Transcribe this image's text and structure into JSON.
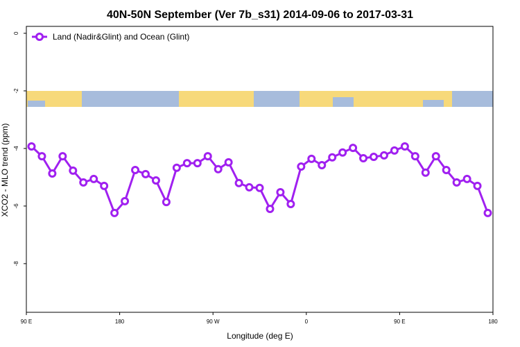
{
  "chart_data": {
    "type": "line",
    "title": "40N-50N September (Ver 7b_s31)   2014-09-06 to 2017-03-31",
    "x_label": "Longitude (deg E)",
    "y_label": "XCO2 - MLO trend (ppm)",
    "x": [
      95,
      105,
      115,
      125,
      135,
      145,
      155,
      165,
      175,
      185,
      195,
      205,
      215,
      225,
      235,
      245,
      255,
      265,
      275,
      285,
      295,
      305,
      315,
      325,
      335,
      345,
      355,
      365,
      375,
      385,
      395,
      405,
      415,
      425,
      435,
      445,
      455,
      465,
      475,
      485,
      495,
      505,
      515,
      525,
      535
    ],
    "series": [
      {
        "name": "Land (Nadir&Glint) and Ocean (Glint)",
        "color": "#a020f0",
        "values": [
          -3.93,
          -4.27,
          -4.87,
          -4.27,
          -4.77,
          -5.18,
          -5.06,
          -5.3,
          -6.24,
          -5.83,
          -4.75,
          -4.89,
          -5.11,
          -5.86,
          -4.67,
          -4.51,
          -4.51,
          -4.27,
          -4.72,
          -4.48,
          -5.2,
          -5.35,
          -5.37,
          -6.1,
          -5.52,
          -5.93,
          -4.63,
          -4.36,
          -4.58,
          -4.31,
          -4.14,
          -3.98,
          -4.34,
          -4.29,
          -4.24,
          -4.07,
          -3.93,
          -4.27,
          -4.84,
          -4.27,
          -4.75,
          -5.18,
          -5.06,
          -5.3,
          -6.24
        ]
      }
    ],
    "xlim": [
      90,
      540
    ],
    "xticks": [
      {
        "value": 90,
        "label": "90 E"
      },
      180,
      {
        "value": 270,
        "label": "90 W"
      },
      0,
      {
        "value": 450,
        "label": "90 E"
      },
      {
        "value": 540,
        "label": "180"
      }
    ],
    "ylim": [
      -9.69,
      0.24
    ],
    "yticks": [
      0,
      -2,
      -4,
      -6,
      -8
    ],
    "legend": "top-left"
  }
}
